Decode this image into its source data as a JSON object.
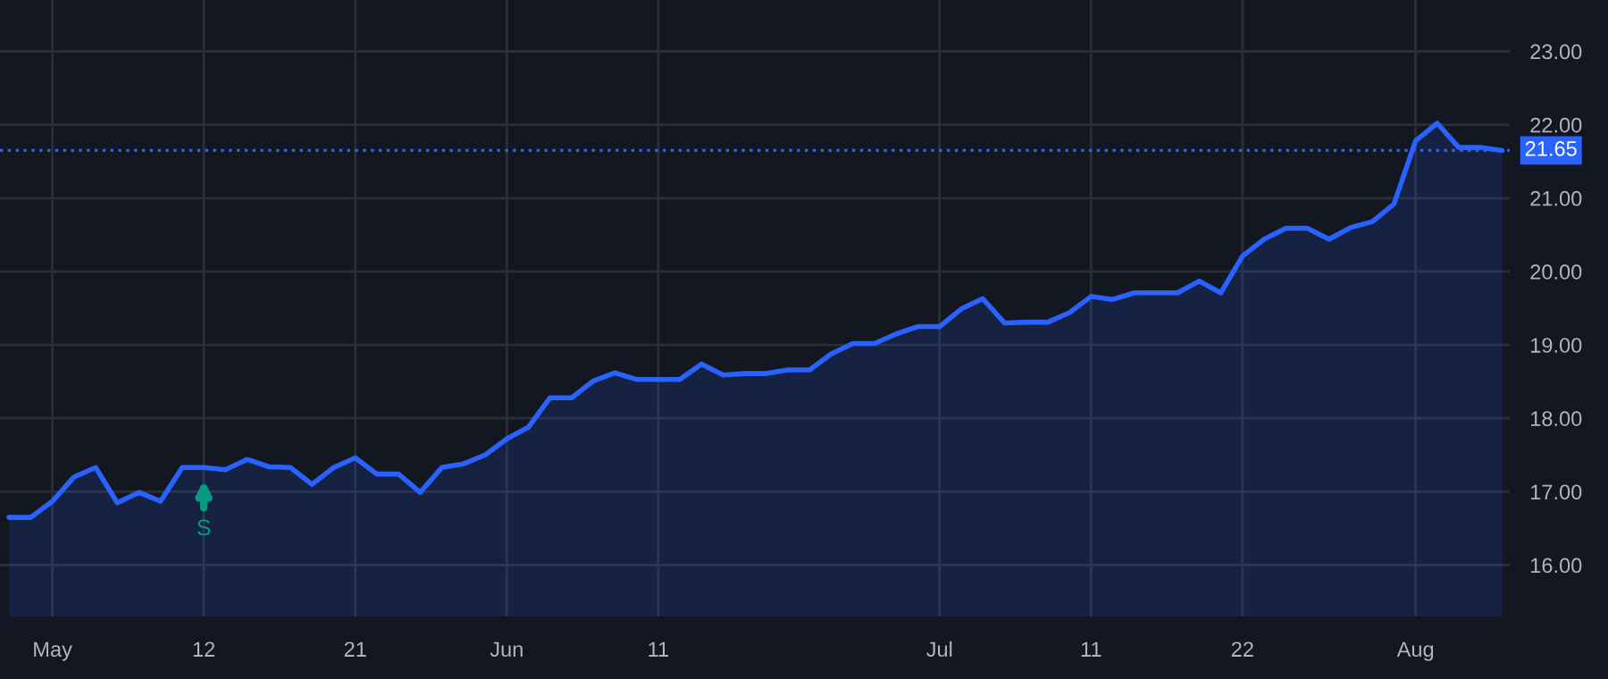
{
  "chart_data": {
    "type": "area",
    "categories": [
      null,
      null,
      "May",
      null,
      null,
      null,
      null,
      null,
      null,
      "12",
      null,
      null,
      null,
      null,
      null,
      null,
      "21",
      null,
      null,
      null,
      null,
      null,
      null,
      "Jun",
      null,
      null,
      null,
      null,
      null,
      null,
      "11",
      null,
      null,
      null,
      null,
      null,
      null,
      null,
      null,
      null,
      null,
      null,
      null,
      "Jul",
      null,
      null,
      null,
      null,
      null,
      null,
      "11",
      null,
      null,
      null,
      null,
      null,
      null,
      "22",
      null,
      null,
      null,
      null,
      null,
      null,
      null,
      "Aug",
      null,
      null,
      null,
      null
    ],
    "series": [
      {
        "color": "#2962ff",
        "values": [
          16.65,
          16.65,
          16.87,
          17.2,
          17.33,
          16.85,
          16.99,
          16.87,
          17.33,
          17.33,
          17.3,
          17.44,
          17.34,
          17.33,
          17.1,
          17.33,
          17.46,
          17.24,
          17.24,
          16.99,
          17.33,
          17.38,
          17.5,
          17.72,
          17.88,
          18.28,
          18.28,
          18.51,
          18.62,
          18.53,
          18.53,
          18.53,
          18.74,
          18.59,
          18.61,
          18.61,
          18.66,
          18.66,
          18.88,
          19.02,
          19.02,
          19.15,
          19.25,
          19.25,
          19.49,
          19.63,
          19.3,
          19.31,
          19.31,
          19.44,
          19.66,
          19.62,
          19.71,
          19.71,
          19.71,
          19.87,
          19.71,
          20.21,
          20.44,
          20.59,
          20.59,
          20.44,
          20.6,
          20.68,
          20.92,
          21.78,
          22.02,
          21.69,
          21.69,
          21.65
        ]
      }
    ],
    "ylim": [
      15.3,
      23.7
    ],
    "yticks": [
      {
        "value": 16,
        "label": "16.00"
      },
      {
        "value": 17,
        "label": "17.00"
      },
      {
        "value": 18,
        "label": "18.00"
      },
      {
        "value": 19,
        "label": "19.00"
      },
      {
        "value": 20,
        "label": "20.00"
      },
      {
        "value": 21,
        "label": "21.00"
      },
      {
        "value": 22,
        "label": "22.00"
      },
      {
        "value": 23,
        "label": "23.00"
      }
    ],
    "ref_lines": [
      {
        "axis": "y",
        "value": 21.65,
        "label": "21.65",
        "color": "#2962ff",
        "line_style": "dotted"
      }
    ],
    "annotations": [
      {
        "text": "S",
        "x": "12",
        "y": 17.33
      }
    ],
    "grid": true,
    "legend": false
  }
}
